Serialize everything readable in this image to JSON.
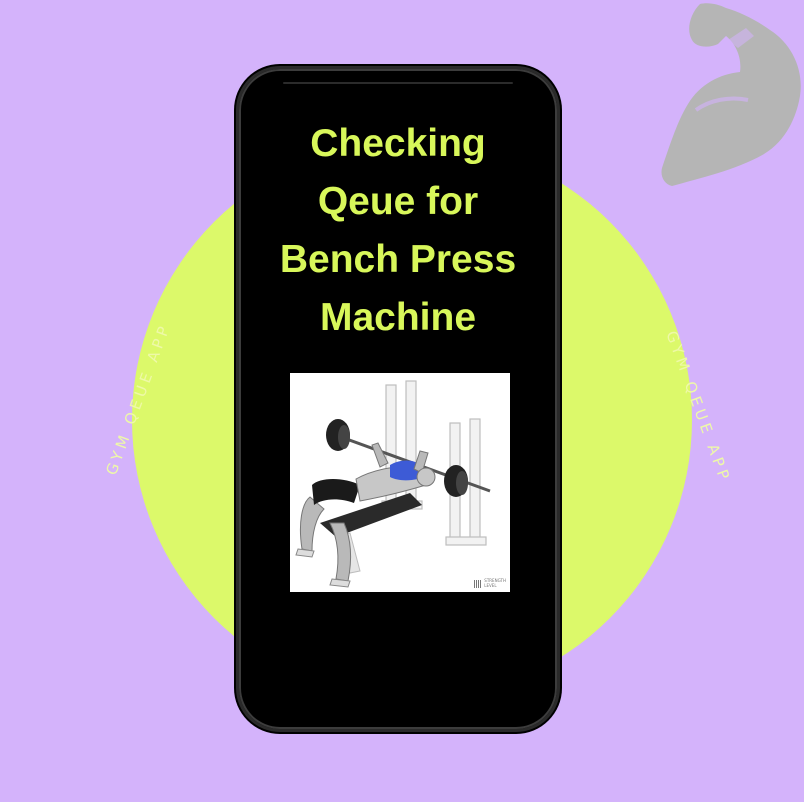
{
  "side_labels": {
    "left": "GYM QEUE APP",
    "right": "GYM QEUE APP"
  },
  "screen": {
    "title_lines": [
      "Checking",
      "Qeue for",
      "Bench Press",
      "Machine"
    ]
  },
  "exercise_image": {
    "icon": "bench-press-illustration",
    "watermark_lines": [
      "STRENGTH",
      "LEVEL"
    ]
  },
  "decor_icon": "flexed-arm-icon",
  "colors": {
    "background": "#d4b3fb",
    "circle": "#dcf96a",
    "title": "#d8f75a",
    "phone": "#000000",
    "muscle_highlight": "#3d5bd6"
  }
}
